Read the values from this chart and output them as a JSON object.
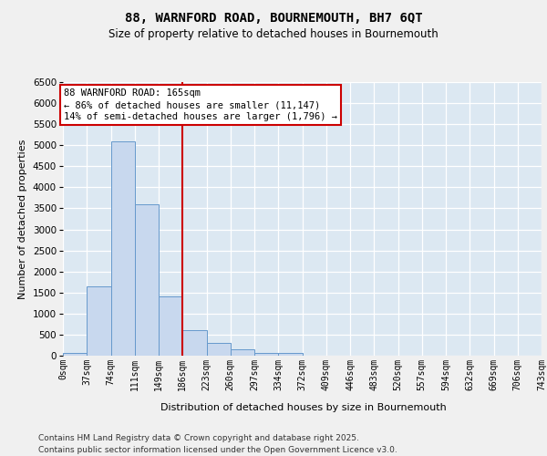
{
  "title_line1": "88, WARNFORD ROAD, BOURNEMOUTH, BH7 6QT",
  "title_line2": "Size of property relative to detached houses in Bournemouth",
  "xlabel": "Distribution of detached houses by size in Bournemouth",
  "ylabel": "Number of detached properties",
  "bar_color": "#c8d8ee",
  "bar_edge_color": "#6699cc",
  "bg_color": "#dce8f2",
  "grid_color": "#ffffff",
  "fig_bg_color": "#f0f0f0",
  "bins_labels": [
    "0sqm",
    "37sqm",
    "74sqm",
    "111sqm",
    "149sqm",
    "186sqm",
    "223sqm",
    "260sqm",
    "297sqm",
    "334sqm",
    "372sqm",
    "409sqm",
    "446sqm",
    "483sqm",
    "520sqm",
    "557sqm",
    "594sqm",
    "632sqm",
    "669sqm",
    "706sqm",
    "743sqm"
  ],
  "bar_heights": [
    60,
    1650,
    5100,
    3600,
    1400,
    600,
    300,
    150,
    75,
    55,
    0,
    0,
    0,
    0,
    0,
    0,
    0,
    0,
    0,
    0
  ],
  "vline_color": "#cc0000",
  "vline_pos": 4.5,
  "ann_title": "88 WARNFORD ROAD: 165sqm",
  "ann_line2": "← 86% of detached houses are smaller (11,147)",
  "ann_line3": "14% of semi-detached houses are larger (1,796) →",
  "ann_box_edgecolor": "#cc0000",
  "ylim": [
    0,
    6500
  ],
  "yticks": [
    0,
    500,
    1000,
    1500,
    2000,
    2500,
    3000,
    3500,
    4000,
    4500,
    5000,
    5500,
    6000,
    6500
  ],
  "footer1": "Contains HM Land Registry data © Crown copyright and database right 2025.",
  "footer2": "Contains public sector information licensed under the Open Government Licence v3.0.",
  "title_fontsize": 10,
  "subtitle_fontsize": 8.5,
  "ylabel_fontsize": 8,
  "xlabel_fontsize": 8,
  "ytick_fontsize": 7.5,
  "xtick_fontsize": 7,
  "ann_fontsize": 7.5,
  "footer_fontsize": 6.5
}
